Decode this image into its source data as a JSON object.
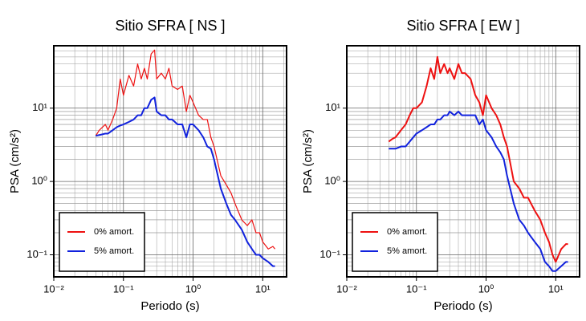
{
  "chart_data": [
    {
      "type": "line",
      "title": "Sitio SFRA [ NS ]",
      "x_label": "Periodo (s)",
      "y_label": "PSA (cm/s²)",
      "x": [
        0.04,
        0.045,
        0.05,
        0.055,
        0.06,
        0.07,
        0.08,
        0.09,
        0.1,
        0.12,
        0.14,
        0.16,
        0.18,
        0.2,
        0.22,
        0.25,
        0.28,
        0.3,
        0.35,
        0.4,
        0.45,
        0.5,
        0.6,
        0.7,
        0.8,
        0.9,
        1.0,
        1.2,
        1.4,
        1.6,
        1.8,
        2.0,
        2.5,
        3.0,
        3.5,
        4,
        5,
        6,
        7,
        8,
        9,
        10,
        12,
        14,
        15
      ],
      "series": [
        {
          "name": "0% amort.",
          "color": "#ee1111",
          "width": 1.2,
          "values": [
            4.2,
            5,
            5.5,
            6,
            5,
            7,
            10,
            25,
            15,
            28,
            20,
            40,
            25,
            35,
            25,
            55,
            62,
            25,
            30,
            25,
            35,
            20,
            18,
            20,
            9,
            15,
            12,
            8,
            7,
            7,
            4,
            3,
            1.2,
            0.9,
            0.7,
            0.5,
            0.3,
            0.25,
            0.3,
            0.2,
            0.2,
            0.15,
            0.12,
            0.13,
            0.12
          ]
        },
        {
          "name": "5% amort.",
          "color": "#1122dd",
          "width": 2,
          "values": [
            4.2,
            4.3,
            4.4,
            4.5,
            4.5,
            5,
            5.5,
            5.8,
            6,
            6.5,
            7,
            8,
            8,
            10,
            10,
            13,
            14,
            9,
            8,
            8,
            7,
            7,
            6,
            6,
            4,
            6,
            6,
            5,
            4,
            3,
            2.8,
            2,
            0.8,
            0.5,
            0.35,
            0.3,
            0.22,
            0.15,
            0.12,
            0.1,
            0.1,
            0.09,
            0.08,
            0.07,
            0.07
          ]
        }
      ],
      "xlim": [
        0.01,
        22
      ],
      "ylim": [
        0.05,
        71
      ],
      "log_x": true,
      "log_y": true,
      "grid": true,
      "legend": "lower left",
      "xticks": [
        {
          "value": 0.01,
          "label": "10⁻²"
        },
        {
          "value": 0.1,
          "label": "10⁻¹"
        },
        {
          "value": 1,
          "label": "10⁰"
        },
        {
          "value": 10,
          "label": "10¹"
        }
      ],
      "yticks": [
        {
          "value": 0.1,
          "label": "10⁻¹"
        },
        {
          "value": 1,
          "label": "10⁰"
        },
        {
          "value": 10,
          "label": "10¹"
        }
      ]
    },
    {
      "type": "line",
      "title": "Sitio SFRA [ EW ]",
      "x_label": "Periodo (s)",
      "y_label": "PSA (cm/s²)",
      "x": [
        0.04,
        0.045,
        0.05,
        0.055,
        0.06,
        0.07,
        0.08,
        0.09,
        0.1,
        0.12,
        0.14,
        0.16,
        0.18,
        0.2,
        0.22,
        0.25,
        0.28,
        0.3,
        0.35,
        0.4,
        0.45,
        0.5,
        0.6,
        0.7,
        0.8,
        0.9,
        1.0,
        1.2,
        1.4,
        1.6,
        1.8,
        2.0,
        2.5,
        3.0,
        3.5,
        4,
        5,
        6,
        7,
        8,
        9,
        10,
        12,
        14,
        15
      ],
      "series": [
        {
          "name": "0% amort.",
          "color": "#ee1111",
          "width": 2,
          "values": [
            3.5,
            3.8,
            4,
            4.5,
            5,
            6,
            8,
            10,
            10,
            12,
            20,
            35,
            25,
            50,
            30,
            40,
            30,
            35,
            25,
            40,
            30,
            30,
            25,
            15,
            12,
            8,
            15,
            10,
            8,
            6,
            4,
            3,
            1,
            0.8,
            0.6,
            0.6,
            0.4,
            0.3,
            0.2,
            0.15,
            0.1,
            0.08,
            0.12,
            0.14,
            0.14
          ]
        },
        {
          "name": "5% amort.",
          "color": "#1122dd",
          "width": 2,
          "values": [
            2.8,
            2.8,
            2.8,
            2.9,
            3,
            3,
            3.5,
            4,
            4.5,
            5,
            5.5,
            6,
            6,
            7,
            7,
            8,
            8,
            9,
            8,
            9,
            8,
            8,
            8,
            8,
            6,
            7,
            5,
            4,
            3,
            2.5,
            2,
            1.2,
            0.5,
            0.3,
            0.25,
            0.2,
            0.15,
            0.12,
            0.08,
            0.07,
            0.06,
            0.06,
            0.07,
            0.08,
            0.08
          ]
        }
      ],
      "xlim": [
        0.01,
        22
      ],
      "ylim": [
        0.05,
        71
      ],
      "log_x": true,
      "log_y": true,
      "grid": true,
      "legend": "lower left",
      "xticks": [
        {
          "value": 0.01,
          "label": "10⁻²"
        },
        {
          "value": 0.1,
          "label": "10⁻¹"
        },
        {
          "value": 1,
          "label": "10⁰"
        },
        {
          "value": 10,
          "label": "10¹"
        }
      ],
      "yticks": [
        {
          "value": 0.1,
          "label": "10⁻¹"
        },
        {
          "value": 1,
          "label": "10⁰"
        },
        {
          "value": 10,
          "label": "10¹"
        }
      ]
    }
  ]
}
